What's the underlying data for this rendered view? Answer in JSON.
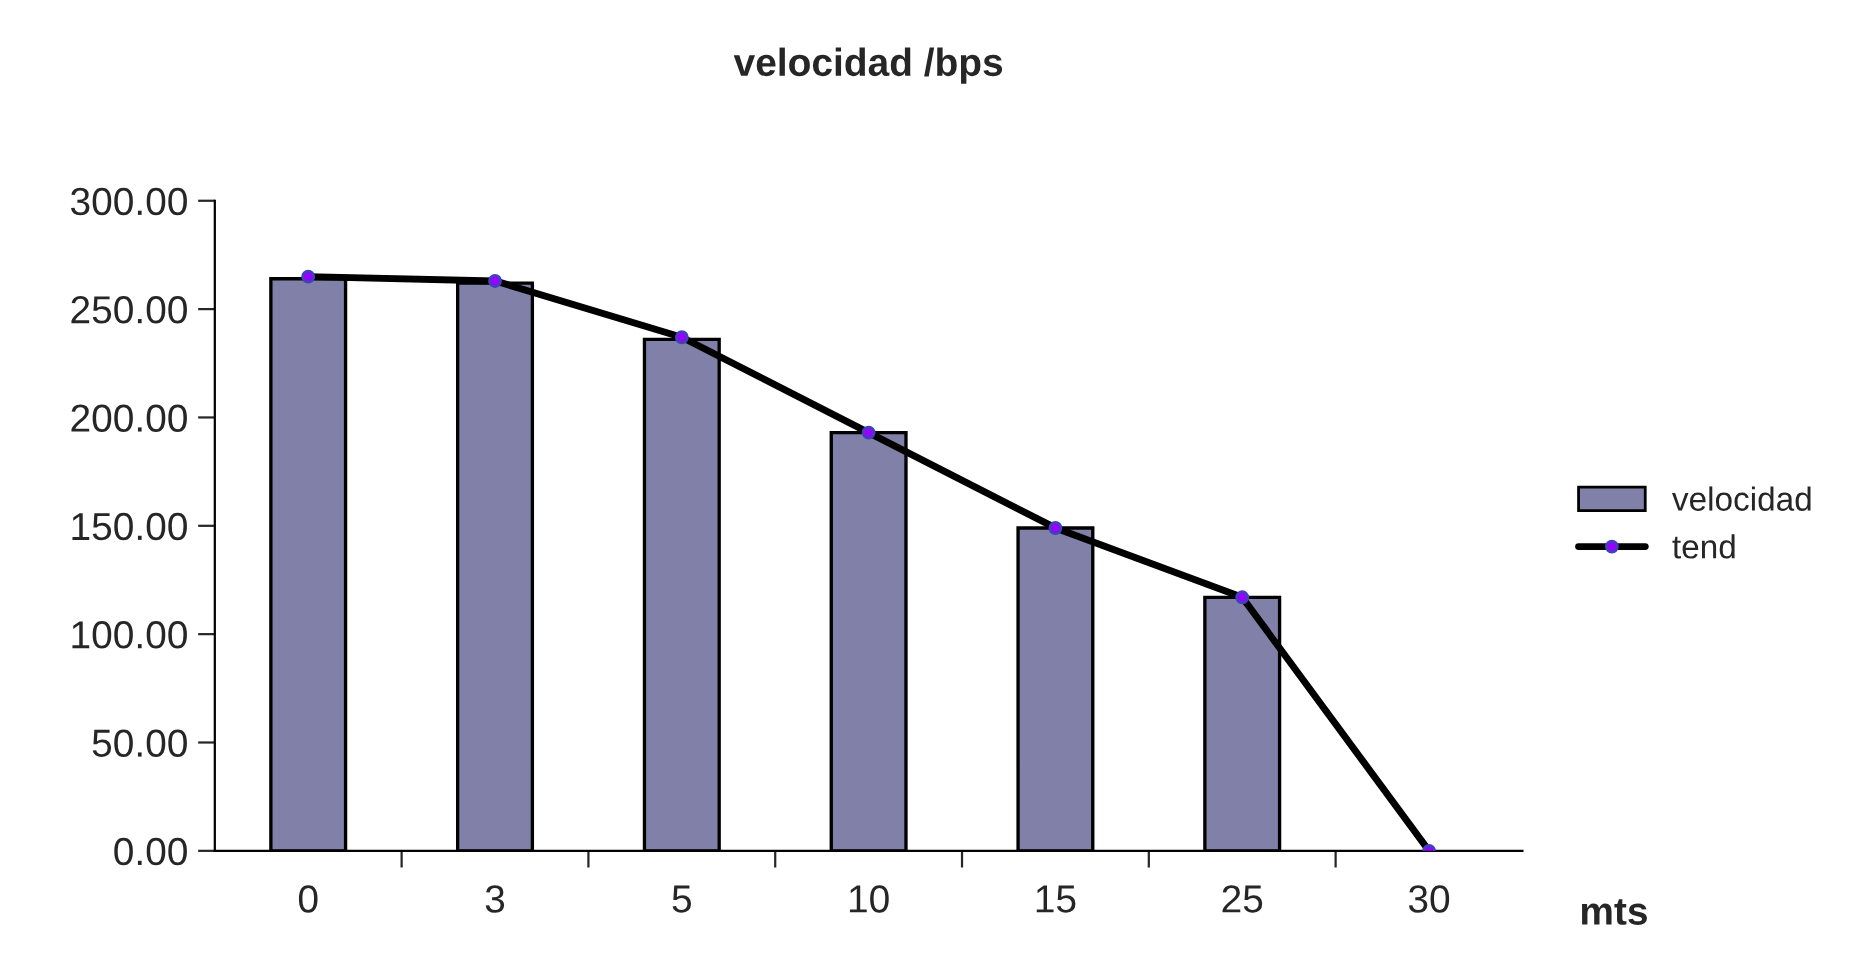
{
  "chart_data": {
    "type": "bar",
    "title": "velocidad /bps",
    "xlabel": "mts",
    "categories": [
      "0",
      "3",
      "5",
      "10",
      "15",
      "25",
      "30"
    ],
    "series": [
      {
        "name": "velocidad",
        "color": "#8080a8",
        "values": [
          264,
          262,
          236,
          193,
          149,
          117,
          null
        ]
      },
      {
        "name": "tend",
        "type": "line",
        "color": "#000000",
        "marker": "circle",
        "values": [
          265,
          263,
          237,
          193,
          149,
          117,
          0
        ]
      }
    ],
    "ylim": [
      0,
      300
    ],
    "yticks": [
      {
        "value": 0,
        "label": "0.00"
      },
      {
        "value": 50,
        "label": "50.00"
      },
      {
        "value": 100,
        "label": "100.00"
      },
      {
        "value": 150,
        "label": "150.00"
      },
      {
        "value": 200,
        "label": "200.00"
      },
      {
        "value": 250,
        "label": "250.00"
      },
      {
        "value": 300,
        "label": "300.00"
      }
    ],
    "grid": false,
    "legend": "right"
  }
}
